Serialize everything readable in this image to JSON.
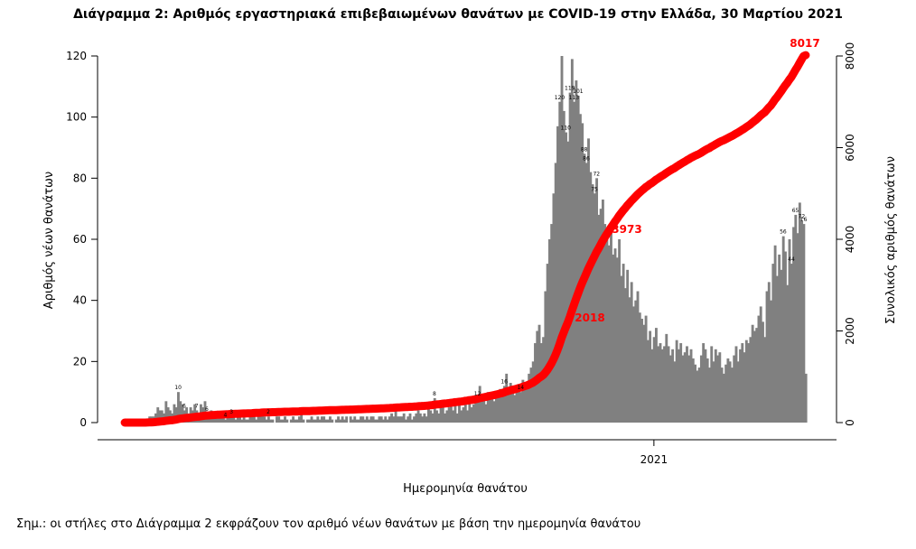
{
  "chart_data": {
    "type": "bar",
    "title": "Διάγραμμα 2: Αριθμός εργαστηριακά επιβεβαιωμένων θανάτων με COVID-19 στην Ελλάδα, 30 Μαρτίου 2021",
    "xlabel": "Ημερομηνία θανάτου",
    "ylabel": "Αριθμός νέων θανάτων",
    "y2label": "Συνολικός αριθμός θανάτων",
    "ylim": [
      0,
      125
    ],
    "y2lim": [
      0,
      8333
    ],
    "yticks": [
      0,
      20,
      40,
      60,
      80,
      100,
      120
    ],
    "y2ticks": [
      0,
      2000,
      4000,
      6000,
      8000
    ],
    "xtick_labels": [
      "2021"
    ],
    "xtick_index": 258,
    "grid": false,
    "series": [
      {
        "name": "",
        "type": "bar",
        "color": "#808080",
        "values": [
          0,
          0,
          0,
          0,
          0,
          0,
          0,
          0,
          0,
          0,
          0,
          1,
          2,
          2,
          2,
          3,
          5,
          4,
          4,
          3,
          7,
          5,
          4,
          3,
          6,
          5,
          10,
          7,
          6,
          4,
          5,
          3,
          5,
          4,
          6,
          4,
          3,
          6,
          5,
          7,
          3,
          2,
          4,
          3,
          2,
          3,
          2,
          2,
          2,
          1,
          2,
          3,
          2,
          2,
          1,
          2,
          2,
          1,
          2,
          1,
          1,
          2,
          2,
          3,
          1,
          2,
          2,
          3,
          2,
          1,
          2,
          1,
          1,
          0,
          2,
          2,
          1,
          1,
          2,
          1,
          0,
          1,
          2,
          1,
          1,
          2,
          3,
          1,
          0,
          1,
          1,
          2,
          1,
          1,
          2,
          1,
          2,
          2,
          1,
          1,
          2,
          1,
          0,
          1,
          2,
          1,
          2,
          1,
          2,
          0,
          2,
          1,
          2,
          1,
          1,
          2,
          2,
          1,
          2,
          1,
          2,
          2,
          1,
          1,
          2,
          2,
          1,
          2,
          1,
          2,
          3,
          2,
          4,
          2,
          2,
          2,
          3,
          1,
          2,
          3,
          1,
          2,
          3,
          4,
          3,
          2,
          3,
          2,
          5,
          4,
          3,
          8,
          4,
          3,
          5,
          6,
          3,
          4,
          5,
          6,
          4,
          7,
          3,
          6,
          4,
          5,
          7,
          4,
          8,
          5,
          6,
          9,
          8,
          12,
          7,
          9,
          6,
          10,
          8,
          9,
          7,
          10,
          9,
          11,
          10,
          12,
          16,
          10,
          13,
          10,
          9,
          11,
          12,
          10,
          14,
          13,
          12,
          16,
          18,
          20,
          26,
          30,
          32,
          26,
          28,
          43,
          52,
          60,
          65,
          75,
          85,
          97,
          105,
          120,
          102,
          95,
          92,
          108,
          119,
          105,
          112,
          107,
          101,
          98,
          88,
          85,
          93,
          82,
          78,
          75,
          80,
          68,
          70,
          73,
          65,
          62,
          58,
          64,
          55,
          57,
          54,
          60,
          48,
          52,
          44,
          50,
          41,
          46,
          38,
          40,
          43,
          36,
          34,
          32,
          35,
          27,
          30,
          24,
          28,
          31,
          25,
          26,
          24,
          25,
          29,
          25,
          22,
          24,
          20,
          27,
          24,
          26,
          22,
          23,
          25,
          22,
          24,
          21,
          19,
          17,
          18,
          22,
          26,
          24,
          21,
          18,
          25,
          20,
          24,
          22,
          23,
          18,
          16,
          19,
          21,
          20,
          18,
          22,
          25,
          20,
          24,
          26,
          23,
          27,
          26,
          28,
          32,
          30,
          31,
          35,
          38,
          33,
          28,
          43,
          46,
          40,
          52,
          58,
          48,
          55,
          50,
          61,
          56,
          45,
          60,
          52,
          64,
          68,
          62,
          72,
          66,
          65,
          16
        ]
      }
    ],
    "cumulative": {
      "name": "",
      "type": "line",
      "color": "#ff0000",
      "final": 8017
    },
    "annotations": {
      "bar_labels_left": [
        "10",
        "6",
        "7",
        "6",
        "4",
        "3",
        "2"
      ],
      "bar_labels_mid": [
        "8",
        "12",
        "16",
        "14"
      ],
      "bar_labels_peak": [
        "120",
        "119",
        "110",
        "113",
        "101",
        "88",
        "86",
        "75",
        "72"
      ],
      "bar_labels_right": [
        "72",
        "65",
        "56",
        "44",
        "16"
      ],
      "curve_labels": [
        "2018",
        "3973",
        "8017"
      ]
    }
  },
  "footnote": "Σημ.: οι στήλες στο Διάγραμμα 2 εκφράζουν τον αριθμό νέων θανάτων με βάση την ημερομηνία θανάτου"
}
